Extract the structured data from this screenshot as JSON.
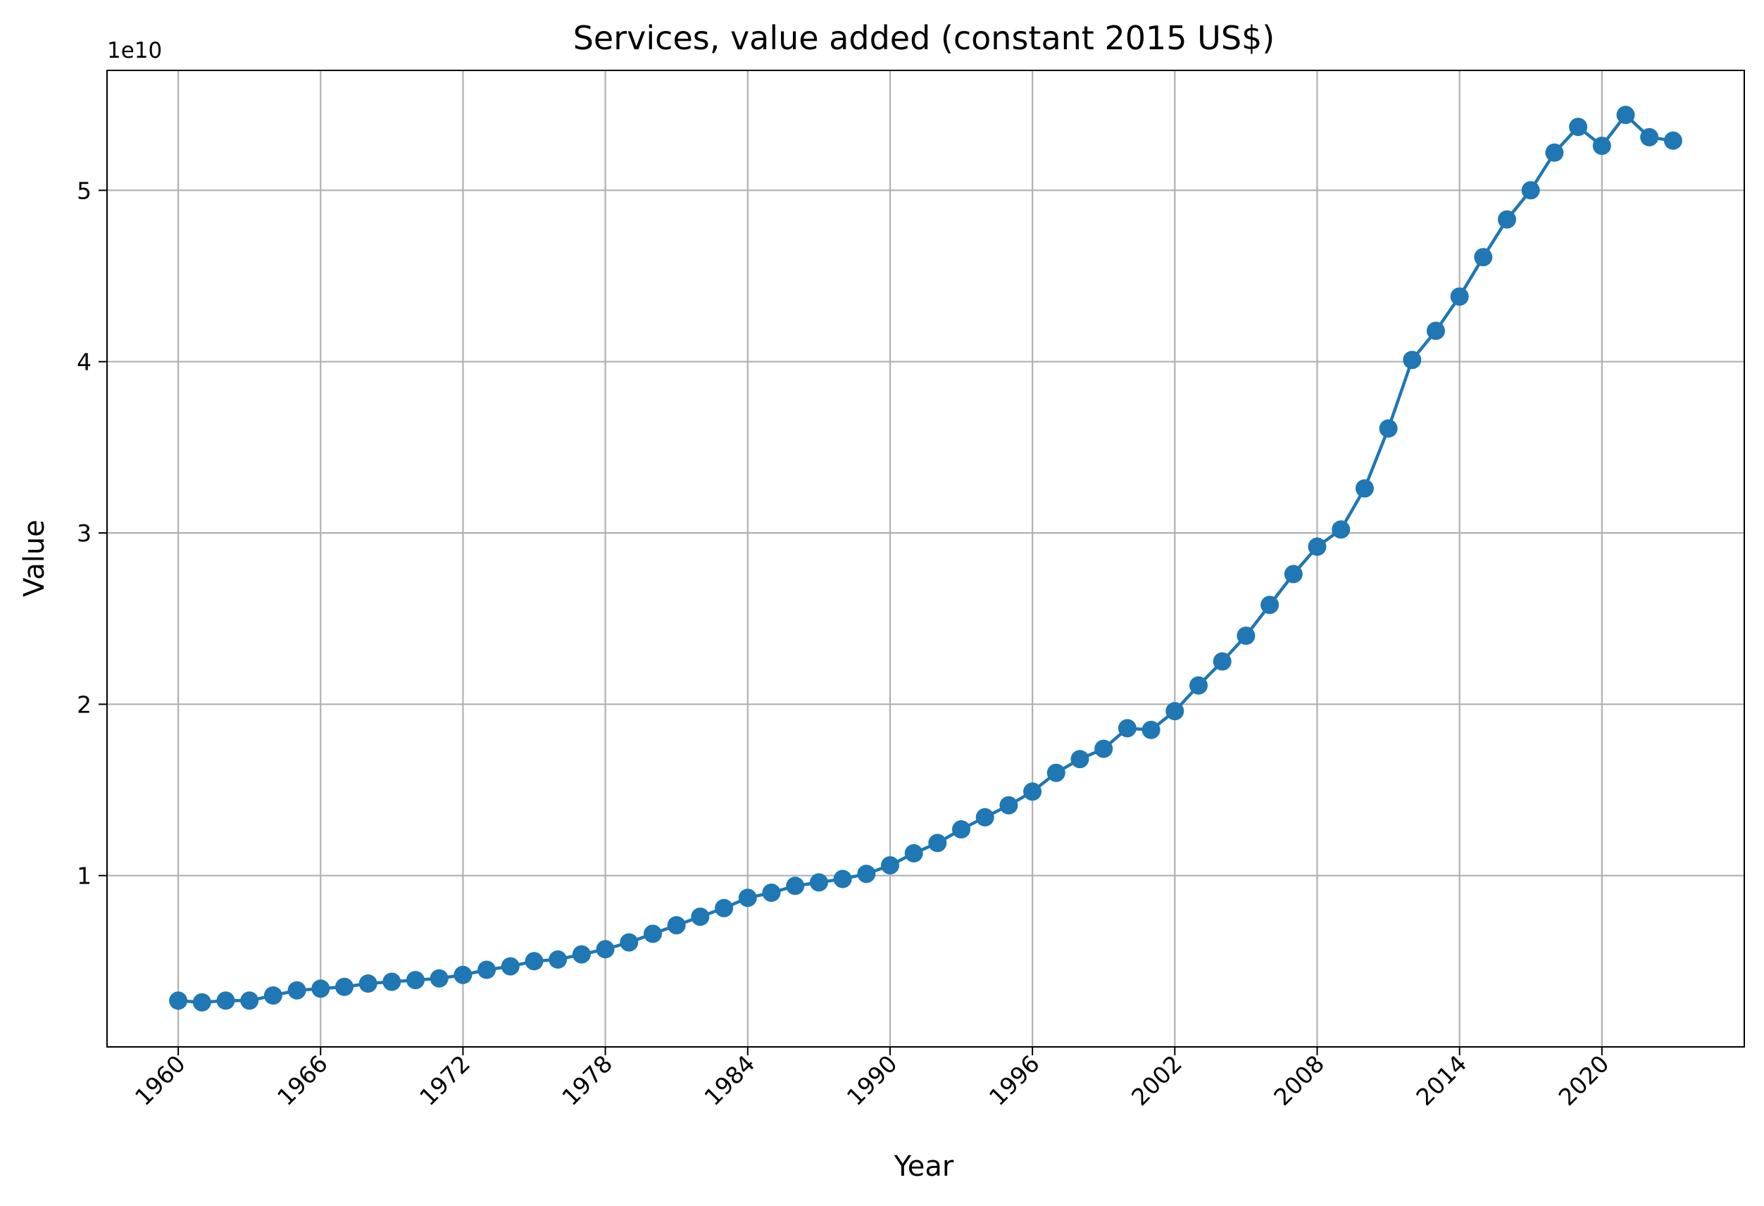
{
  "chart_data": {
    "type": "line",
    "title": "Services, value added (constant 2015 US$)",
    "xlabel": "Year",
    "ylabel": "Value",
    "y_offset_label": "1e10",
    "y_scale": 10000000000.0,
    "xlim": [
      1957,
      2026
    ],
    "ylim": [
      0,
      5.7
    ],
    "x_ticks": [
      1960,
      1966,
      1972,
      1978,
      1984,
      1990,
      1996,
      2002,
      2008,
      2014,
      2020
    ],
    "x_tick_labels": [
      "1960",
      "1966",
      "1972",
      "1978",
      "1984",
      "1990",
      "1996",
      "2002",
      "2008",
      "2014",
      "2020"
    ],
    "y_ticks": [
      1,
      2,
      3,
      4,
      5
    ],
    "y_tick_labels": [
      "1",
      "2",
      "3",
      "4",
      "5"
    ],
    "grid": true,
    "series_color": "#1f77b4",
    "series": [
      {
        "x": [
          1960,
          1961,
          1962,
          1963,
          1964,
          1965,
          1966,
          1967,
          1968,
          1969,
          1970,
          1971,
          1972,
          1973,
          1974,
          1975,
          1976,
          1977,
          1978,
          1979,
          1980,
          1981,
          1982,
          1983,
          1984,
          1985,
          1986,
          1987,
          1988,
          1989,
          1990,
          1991,
          1992,
          1993,
          1994,
          1995,
          1996,
          1997,
          1998,
          1999,
          2000,
          2001,
          2002,
          2003,
          2004,
          2005,
          2006,
          2007,
          2008,
          2009,
          2010,
          2011,
          2012,
          2013,
          2014,
          2015,
          2016,
          2017,
          2018,
          2019,
          2020,
          2021,
          2022,
          2023
        ],
        "values": [
          0.27,
          0.26,
          0.27,
          0.27,
          0.3,
          0.33,
          0.34,
          0.35,
          0.37,
          0.38,
          0.39,
          0.4,
          0.42,
          0.45,
          0.47,
          0.5,
          0.51,
          0.54,
          0.57,
          0.61,
          0.66,
          0.71,
          0.76,
          0.81,
          0.87,
          0.9,
          0.94,
          0.96,
          0.98,
          1.01,
          1.06,
          1.13,
          1.19,
          1.27,
          1.34,
          1.41,
          1.49,
          1.6,
          1.68,
          1.74,
          1.86,
          1.85,
          1.96,
          2.11,
          2.25,
          2.4,
          2.58,
          2.76,
          2.92,
          3.02,
          3.26,
          3.61,
          4.01,
          4.18,
          4.38,
          4.61,
          4.83,
          5.0,
          5.22,
          5.37,
          5.26,
          5.44,
          5.31,
          5.29
        ]
      }
    ]
  }
}
